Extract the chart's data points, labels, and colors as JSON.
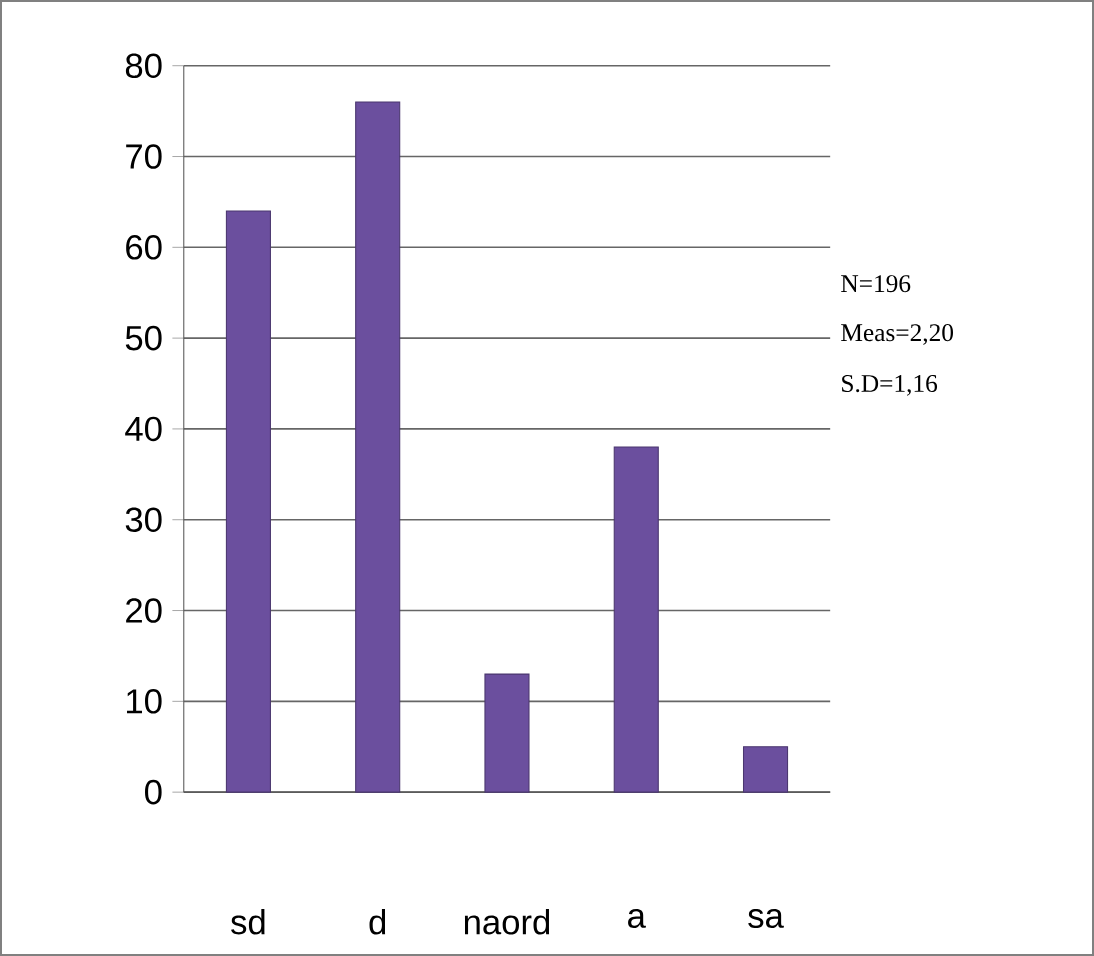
{
  "chart_data": {
    "type": "bar",
    "categories": [
      "sd",
      "d",
      "naord",
      "a",
      "sa"
    ],
    "values": [
      64,
      76,
      13,
      38,
      5
    ],
    "color": "#6b4f9e",
    "ylim": [
      0,
      80
    ],
    "yticks": [
      0,
      10,
      20,
      30,
      40,
      50,
      60,
      70,
      80
    ],
    "grid": "y",
    "annotations": [
      "N=196",
      "Meas=2,20",
      "S.D=1,16"
    ]
  }
}
